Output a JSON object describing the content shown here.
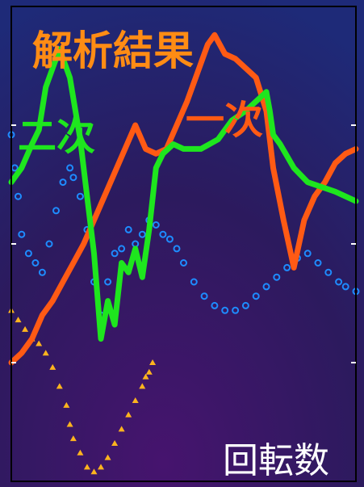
{
  "chart_data": {
    "type": "line",
    "title": "解析結果",
    "xlabel": "回転数",
    "ylabel": "",
    "grid": false,
    "xlim": [
      0,
      100
    ],
    "ylim": [
      0,
      100
    ],
    "colors": {
      "first": "#ff5a14",
      "second": "#1ee61e",
      "third": "#1e8cff",
      "fourth": "#ffb41e",
      "title": "#ff8c14",
      "xlabel": "#ffffff"
    },
    "annotations": [
      "一次",
      "二次"
    ],
    "series": [
      {
        "name": "一次",
        "style": "thick-line",
        "x": [
          0,
          3,
          6,
          9,
          12,
          15,
          18,
          21,
          24,
          27,
          30,
          33,
          36,
          39,
          42,
          45,
          48,
          51,
          54,
          57,
          59,
          62,
          65,
          68,
          71,
          74,
          76,
          79,
          82,
          85,
          88,
          91,
          94,
          97,
          100
        ],
        "y": [
          25,
          27,
          30,
          35,
          38,
          42,
          46,
          50,
          55,
          60,
          65,
          70,
          75,
          70,
          69,
          70,
          75,
          80,
          86,
          92,
          94,
          90,
          89,
          87,
          85,
          78,
          66,
          55,
          45,
          55,
          60,
          63,
          67,
          69,
          70
        ]
      },
      {
        "name": "二次",
        "style": "thick-line",
        "x": [
          0,
          3,
          6,
          8,
          10,
          12,
          14,
          17,
          20,
          22,
          24,
          26,
          28,
          30,
          32,
          34,
          36,
          38,
          40,
          42,
          44,
          47,
          50,
          55,
          60,
          64,
          68,
          71,
          74,
          75,
          76,
          78,
          82,
          86,
          90,
          94,
          97,
          100
        ],
        "y": [
          63,
          66,
          71,
          74,
          83,
          87,
          91,
          85,
          72,
          60,
          48,
          30,
          38,
          33,
          46,
          44,
          49,
          43,
          53,
          66,
          69,
          71,
          70,
          70,
          72,
          76,
          78,
          80,
          82,
          78,
          73,
          71,
          66,
          63,
          62,
          61,
          60,
          59
        ]
      },
      {
        "name": "",
        "style": "circles",
        "x": [
          0,
          1,
          2,
          3,
          5,
          7,
          9,
          11,
          13,
          15,
          17,
          18,
          20,
          22,
          24,
          26,
          28,
          30,
          32,
          34,
          36,
          38,
          40,
          42,
          44,
          46,
          48,
          50,
          53,
          56,
          59,
          62,
          65,
          68,
          71,
          74,
          77,
          80,
          83,
          86,
          89,
          92,
          95,
          97,
          100
        ],
        "y": [
          73,
          66,
          60,
          52,
          48,
          46,
          44,
          50,
          57,
          63,
          66,
          64,
          60,
          53,
          42,
          35,
          42,
          48,
          49,
          53,
          50,
          52,
          55,
          54,
          52,
          51,
          49,
          46,
          42,
          39,
          37,
          36,
          36,
          37,
          39,
          41,
          43,
          45,
          47,
          48,
          46,
          44,
          42,
          41,
          40
        ]
      },
      {
        "name": "",
        "style": "triangles",
        "x": [
          0,
          2,
          4,
          6,
          8,
          10,
          12,
          14,
          16,
          17,
          18,
          20,
          22,
          24,
          26,
          28,
          30,
          32,
          34,
          36,
          38,
          39,
          40,
          41
        ],
        "y": [
          36,
          34,
          32,
          30,
          29,
          27,
          24,
          20,
          16,
          12,
          9,
          6,
          3,
          2,
          3,
          5,
          8,
          11,
          14,
          17,
          20,
          22,
          23,
          25
        ]
      }
    ]
  }
}
